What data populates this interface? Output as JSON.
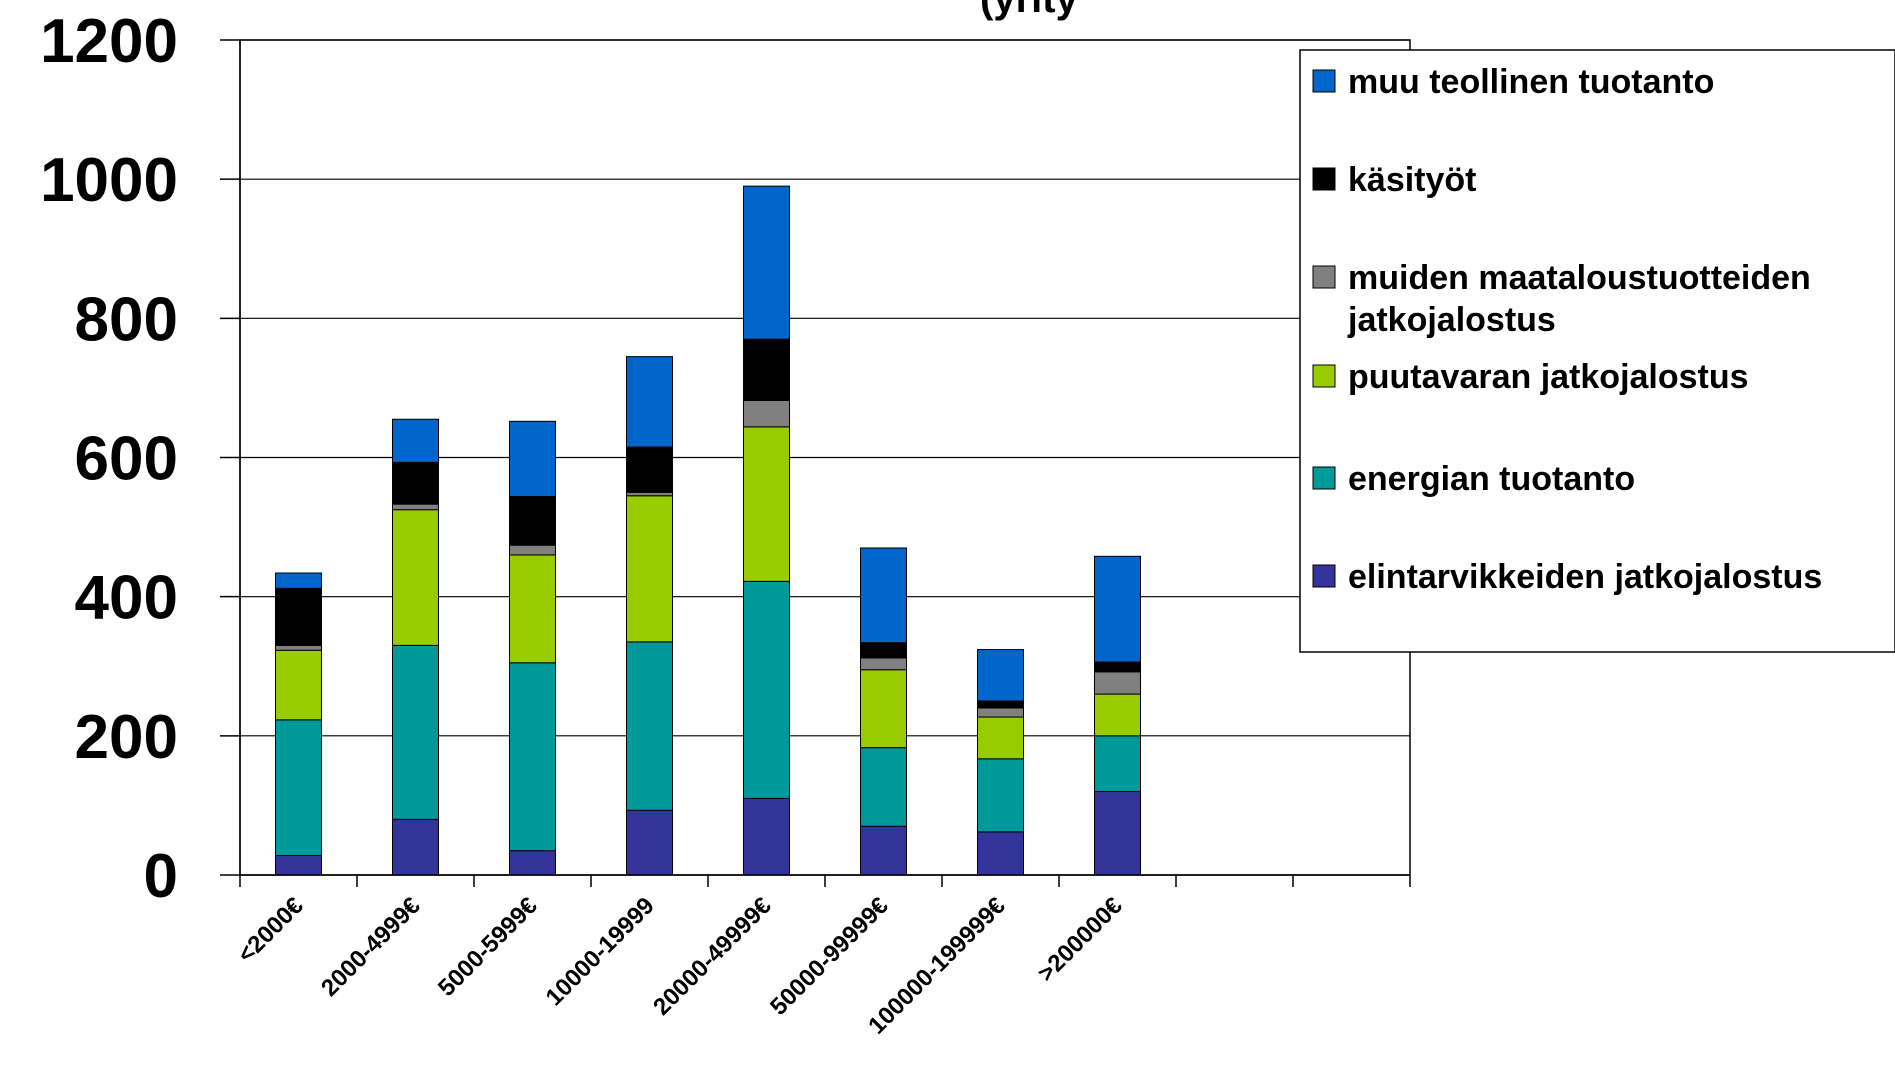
{
  "chart_data": {
    "type": "bar",
    "stacked": true,
    "title": "(yrity",
    "categories": [
      "<2000€",
      "2000-4999€",
      "5000-5999€",
      "10000-19999",
      "20000-49999€",
      "50000-99999€",
      "100000-199999€",
      ">200000€"
    ],
    "series": [
      {
        "name": "elintarvikkeiden jatkojalostus",
        "color": "#333399",
        "values": [
          28,
          80,
          35,
          93,
          110,
          70,
          62,
          120
        ]
      },
      {
        "name": "energian tuotanto",
        "color": "#009999",
        "values": [
          195,
          250,
          270,
          242,
          312,
          113,
          105,
          80
        ]
      },
      {
        "name": "puutavaran jatkojalostus",
        "color": "#99CC00",
        "values": [
          100,
          195,
          155,
          210,
          222,
          112,
          60,
          60
        ]
      },
      {
        "name": "muiden maataloustuotteiden jatkojalostus",
        "color": "#808080",
        "values": [
          7,
          8,
          14,
          5,
          38,
          17,
          13,
          32
        ]
      },
      {
        "name": "käsityöt",
        "color": "#000000",
        "values": [
          82,
          60,
          70,
          65,
          88,
          22,
          10,
          14
        ]
      },
      {
        "name": "muu teollinen tuotanto",
        "color": "#0066CC",
        "values": [
          22,
          62,
          108,
          130,
          220,
          136,
          74,
          152
        ]
      }
    ],
    "ylim": [
      0,
      1200
    ],
    "yticks": [
      0,
      200,
      400,
      600,
      800,
      1000,
      1200
    ],
    "grid": true,
    "legend_position": "top-right",
    "legend_order": [
      5,
      4,
      3,
      2,
      1,
      0
    ],
    "legend_lines": {
      "3": [
        "muiden maataloustuotteiden",
        "jatkojalostus"
      ]
    }
  }
}
